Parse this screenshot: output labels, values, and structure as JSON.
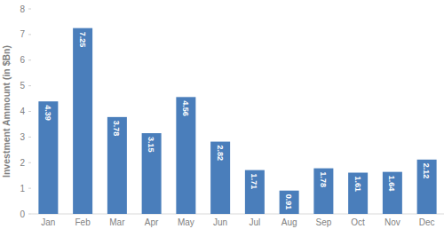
{
  "chart_data": {
    "type": "bar",
    "y_label": "Investment Ammount (in $Bn)",
    "categories": [
      "Jan",
      "Feb",
      "Mar",
      "Apr",
      "May",
      "Jun",
      "Jul",
      "Aug",
      "Sep",
      "Oct",
      "Nov",
      "Dec"
    ],
    "values": [
      4.39,
      7.25,
      3.78,
      3.15,
      4.56,
      2.82,
      1.71,
      0.91,
      1.78,
      1.61,
      1.64,
      2.12
    ],
    "color": "#4a7ebb",
    "ylim": [
      0,
      8
    ],
    "yticks": [
      0,
      1,
      2,
      3,
      4,
      5,
      6,
      7,
      8
    ],
    "grid": false,
    "data_labels": true
  }
}
